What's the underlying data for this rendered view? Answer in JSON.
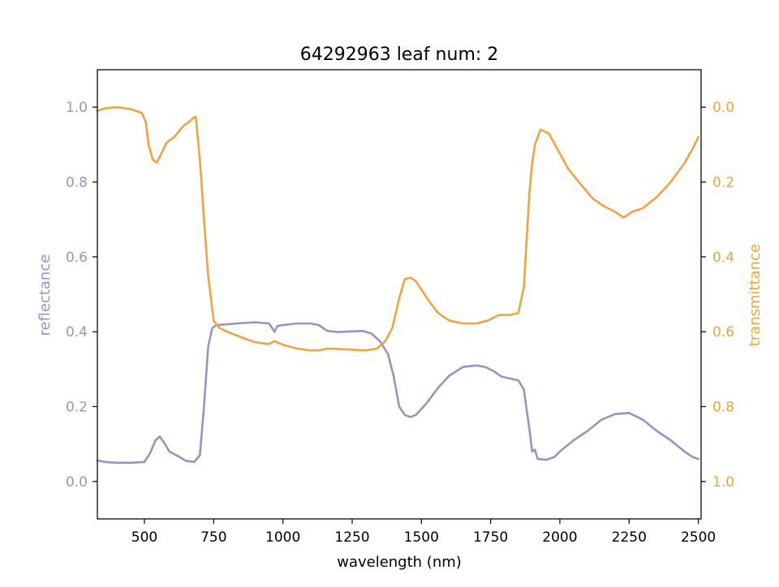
{
  "chart_data": {
    "type": "line",
    "title": "64292963 leaf num: 2",
    "xlabel": "wavelength (nm)",
    "ylabel_left": "reflectance",
    "ylabel_right": "transmittance",
    "xlim": [
      330,
      2510
    ],
    "ylim_left": [
      -0.1,
      1.1
    ],
    "ylim_right": [
      1.1,
      -0.1
    ],
    "right_axis_inverted": true,
    "x_ticks": [
      500,
      750,
      1000,
      1250,
      1500,
      1750,
      2000,
      2250,
      2500
    ],
    "y_ticks_left": [
      0.0,
      0.2,
      0.4,
      0.6,
      0.8,
      1.0
    ],
    "y_ticks_right": [
      0.0,
      0.2,
      0.4,
      0.6,
      0.8,
      1.0
    ],
    "grid": false,
    "colors": {
      "reflectance": "#9893c5",
      "transmittance": "#f0a43c"
    },
    "series": [
      {
        "key": "reflectance",
        "axis": "left",
        "values": [
          [
            330,
            0.056
          ],
          [
            360,
            0.052
          ],
          [
            400,
            0.05
          ],
          [
            450,
            0.05
          ],
          [
            500,
            0.052
          ],
          [
            520,
            0.075
          ],
          [
            540,
            0.11
          ],
          [
            555,
            0.12
          ],
          [
            570,
            0.105
          ],
          [
            590,
            0.08
          ],
          [
            620,
            0.068
          ],
          [
            650,
            0.055
          ],
          [
            680,
            0.052
          ],
          [
            700,
            0.07
          ],
          [
            715,
            0.2
          ],
          [
            730,
            0.36
          ],
          [
            745,
            0.41
          ],
          [
            760,
            0.418
          ],
          [
            800,
            0.42
          ],
          [
            850,
            0.423
          ],
          [
            900,
            0.425
          ],
          [
            950,
            0.422
          ],
          [
            970,
            0.4
          ],
          [
            980,
            0.415
          ],
          [
            1000,
            0.418
          ],
          [
            1050,
            0.422
          ],
          [
            1100,
            0.422
          ],
          [
            1130,
            0.418
          ],
          [
            1160,
            0.402
          ],
          [
            1200,
            0.399
          ],
          [
            1250,
            0.401
          ],
          [
            1290,
            0.402
          ],
          [
            1320,
            0.395
          ],
          [
            1350,
            0.375
          ],
          [
            1380,
            0.34
          ],
          [
            1400,
            0.28
          ],
          [
            1420,
            0.2
          ],
          [
            1440,
            0.178
          ],
          [
            1460,
            0.172
          ],
          [
            1480,
            0.178
          ],
          [
            1520,
            0.21
          ],
          [
            1560,
            0.25
          ],
          [
            1600,
            0.282
          ],
          [
            1650,
            0.306
          ],
          [
            1700,
            0.31
          ],
          [
            1730,
            0.306
          ],
          [
            1760,
            0.295
          ],
          [
            1790,
            0.28
          ],
          [
            1820,
            0.275
          ],
          [
            1850,
            0.27
          ],
          [
            1870,
            0.245
          ],
          [
            1890,
            0.14
          ],
          [
            1900,
            0.08
          ],
          [
            1910,
            0.085
          ],
          [
            1920,
            0.06
          ],
          [
            1950,
            0.058
          ],
          [
            1980,
            0.065
          ],
          [
            2000,
            0.08
          ],
          [
            2050,
            0.11
          ],
          [
            2100,
            0.135
          ],
          [
            2150,
            0.165
          ],
          [
            2200,
            0.18
          ],
          [
            2250,
            0.183
          ],
          [
            2300,
            0.165
          ],
          [
            2350,
            0.135
          ],
          [
            2400,
            0.11
          ],
          [
            2450,
            0.08
          ],
          [
            2480,
            0.065
          ],
          [
            2500,
            0.06
          ]
        ]
      },
      {
        "key": "transmittance",
        "axis": "right",
        "values": [
          [
            330,
            0.01
          ],
          [
            360,
            0.003
          ],
          [
            400,
            0.0
          ],
          [
            450,
            0.005
          ],
          [
            490,
            0.015
          ],
          [
            505,
            0.04
          ],
          [
            515,
            0.1
          ],
          [
            530,
            0.14
          ],
          [
            545,
            0.148
          ],
          [
            560,
            0.125
          ],
          [
            580,
            0.095
          ],
          [
            610,
            0.078
          ],
          [
            640,
            0.05
          ],
          [
            660,
            0.04
          ],
          [
            675,
            0.03
          ],
          [
            685,
            0.025
          ],
          [
            700,
            0.14
          ],
          [
            715,
            0.3
          ],
          [
            730,
            0.45
          ],
          [
            750,
            0.57
          ],
          [
            770,
            0.59
          ],
          [
            800,
            0.6
          ],
          [
            850,
            0.615
          ],
          [
            900,
            0.628
          ],
          [
            950,
            0.633
          ],
          [
            970,
            0.625
          ],
          [
            1000,
            0.635
          ],
          [
            1050,
            0.645
          ],
          [
            1100,
            0.65
          ],
          [
            1130,
            0.65
          ],
          [
            1160,
            0.645
          ],
          [
            1200,
            0.646
          ],
          [
            1250,
            0.648
          ],
          [
            1300,
            0.65
          ],
          [
            1340,
            0.645
          ],
          [
            1370,
            0.625
          ],
          [
            1395,
            0.59
          ],
          [
            1420,
            0.51
          ],
          [
            1440,
            0.46
          ],
          [
            1460,
            0.455
          ],
          [
            1480,
            0.465
          ],
          [
            1520,
            0.51
          ],
          [
            1560,
            0.55
          ],
          [
            1600,
            0.57
          ],
          [
            1650,
            0.578
          ],
          [
            1700,
            0.578
          ],
          [
            1740,
            0.57
          ],
          [
            1780,
            0.555
          ],
          [
            1820,
            0.555
          ],
          [
            1850,
            0.55
          ],
          [
            1870,
            0.48
          ],
          [
            1890,
            0.23
          ],
          [
            1900,
            0.15
          ],
          [
            1910,
            0.1
          ],
          [
            1930,
            0.06
          ],
          [
            1960,
            0.07
          ],
          [
            1990,
            0.11
          ],
          [
            2030,
            0.165
          ],
          [
            2080,
            0.21
          ],
          [
            2120,
            0.245
          ],
          [
            2160,
            0.265
          ],
          [
            2200,
            0.28
          ],
          [
            2230,
            0.295
          ],
          [
            2260,
            0.28
          ],
          [
            2300,
            0.27
          ],
          [
            2350,
            0.24
          ],
          [
            2400,
            0.2
          ],
          [
            2450,
            0.15
          ],
          [
            2480,
            0.11
          ],
          [
            2500,
            0.08
          ]
        ]
      }
    ]
  }
}
